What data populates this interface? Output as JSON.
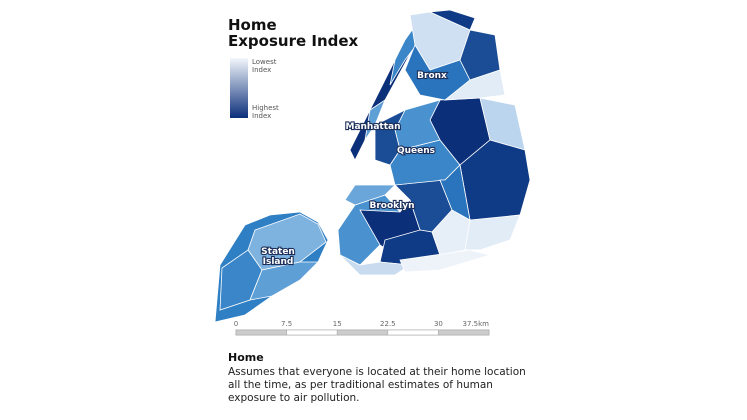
{
  "header": {
    "title_lines": [
      "Home",
      "Exposure Index"
    ]
  },
  "legend": {
    "low": [
      "Lowest",
      "Index"
    ],
    "high": [
      "Highest",
      "Index"
    ]
  },
  "map": {
    "labels": {
      "bronx": "Bronx",
      "manhattan": "Manhattan",
      "queens": "Queens",
      "brooklyn": "Brooklyn",
      "staten_island": [
        "Staten",
        "Island"
      ]
    }
  },
  "scale": {
    "ticks": [
      "0",
      "7.5",
      "15",
      "22.5",
      "30",
      "37.5km"
    ]
  },
  "caption": {
    "title": "Home",
    "lines": [
      "Assumes that everyone is located at their home location",
      "all the time, as per traditional estimates of human",
      "exposure to air pollution."
    ]
  }
}
